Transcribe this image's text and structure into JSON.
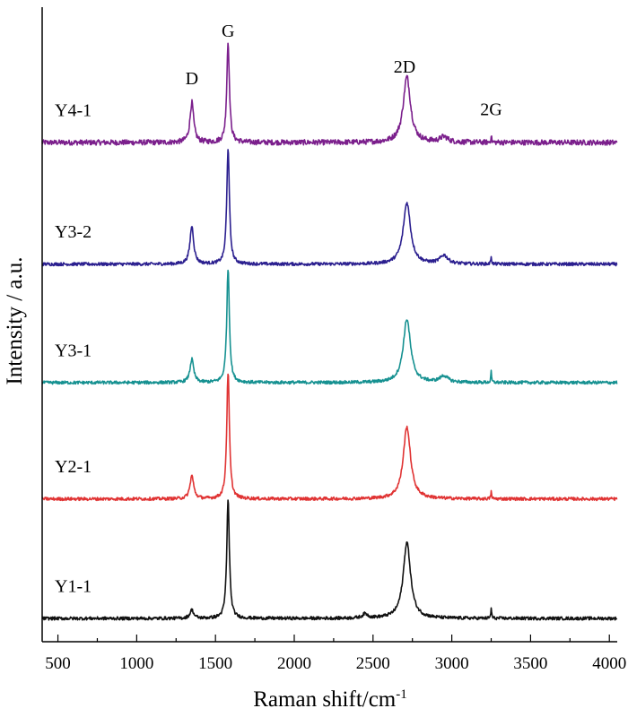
{
  "chart_data": {
    "type": "line",
    "title": "",
    "xlabel": "Raman shift/cm",
    "xlabel_sup": "-1",
    "ylabel": "Intensity / a.u.",
    "xlim": [
      400,
      4050
    ],
    "ylim": [
      0,
      6
    ],
    "xticks": [
      500,
      1000,
      1500,
      2000,
      2500,
      3000,
      3500,
      4000
    ],
    "yticks_shown": false,
    "grid": false,
    "legend": "none (series labeled inline at left)",
    "peak_annotations": [
      {
        "label": "D",
        "x": 1350,
        "y": 5.27
      },
      {
        "label": "G",
        "x": 1580,
        "y": 5.72
      },
      {
        "label": "2D",
        "x": 2700,
        "y": 5.38
      },
      {
        "label": "2G",
        "x": 3250,
        "y": 4.98
      }
    ],
    "series": [
      {
        "name": "Y4-1",
        "color": "#7b1f8c",
        "baseline": 4.72,
        "noise": 0.025,
        "peaks": [
          {
            "x": 1350,
            "h": 0.38,
            "w": 14
          },
          {
            "x": 1580,
            "h": 0.95,
            "w": 10
          },
          {
            "x": 2715,
            "h": 0.62,
            "w": 28
          },
          {
            "x": 2950,
            "h": 0.05,
            "w": 30
          },
          {
            "x": 3250,
            "h": 0.07,
            "w": 3
          }
        ]
      },
      {
        "name": "Y3-2",
        "color": "#2b1f8f",
        "baseline": 3.57,
        "noise": 0.015,
        "peaks": [
          {
            "x": 1350,
            "h": 0.36,
            "w": 14
          },
          {
            "x": 1580,
            "h": 1.1,
            "w": 10
          },
          {
            "x": 2715,
            "h": 0.58,
            "w": 28
          },
          {
            "x": 2950,
            "h": 0.08,
            "w": 30
          },
          {
            "x": 3250,
            "h": 0.08,
            "w": 3
          }
        ]
      },
      {
        "name": "Y3-1",
        "color": "#169191",
        "baseline": 2.45,
        "noise": 0.015,
        "peaks": [
          {
            "x": 1350,
            "h": 0.22,
            "w": 14
          },
          {
            "x": 1580,
            "h": 1.08,
            "w": 10
          },
          {
            "x": 2715,
            "h": 0.6,
            "w": 28
          },
          {
            "x": 2950,
            "h": 0.06,
            "w": 30
          },
          {
            "x": 3250,
            "h": 0.1,
            "w": 3
          }
        ]
      },
      {
        "name": "Y2-1",
        "color": "#e03333",
        "baseline": 1.35,
        "noise": 0.015,
        "peaks": [
          {
            "x": 1350,
            "h": 0.22,
            "w": 14
          },
          {
            "x": 1580,
            "h": 1.2,
            "w": 10
          },
          {
            "x": 2715,
            "h": 0.68,
            "w": 28
          },
          {
            "x": 3250,
            "h": 0.07,
            "w": 3
          }
        ]
      },
      {
        "name": "Y1-1",
        "color": "#111111",
        "baseline": 0.22,
        "noise": 0.015,
        "peaks": [
          {
            "x": 1350,
            "h": 0.08,
            "w": 14
          },
          {
            "x": 1580,
            "h": 1.12,
            "w": 10
          },
          {
            "x": 2715,
            "h": 0.72,
            "w": 28
          },
          {
            "x": 2450,
            "h": 0.04,
            "w": 20
          },
          {
            "x": 3250,
            "h": 0.1,
            "w": 3
          }
        ]
      }
    ]
  }
}
